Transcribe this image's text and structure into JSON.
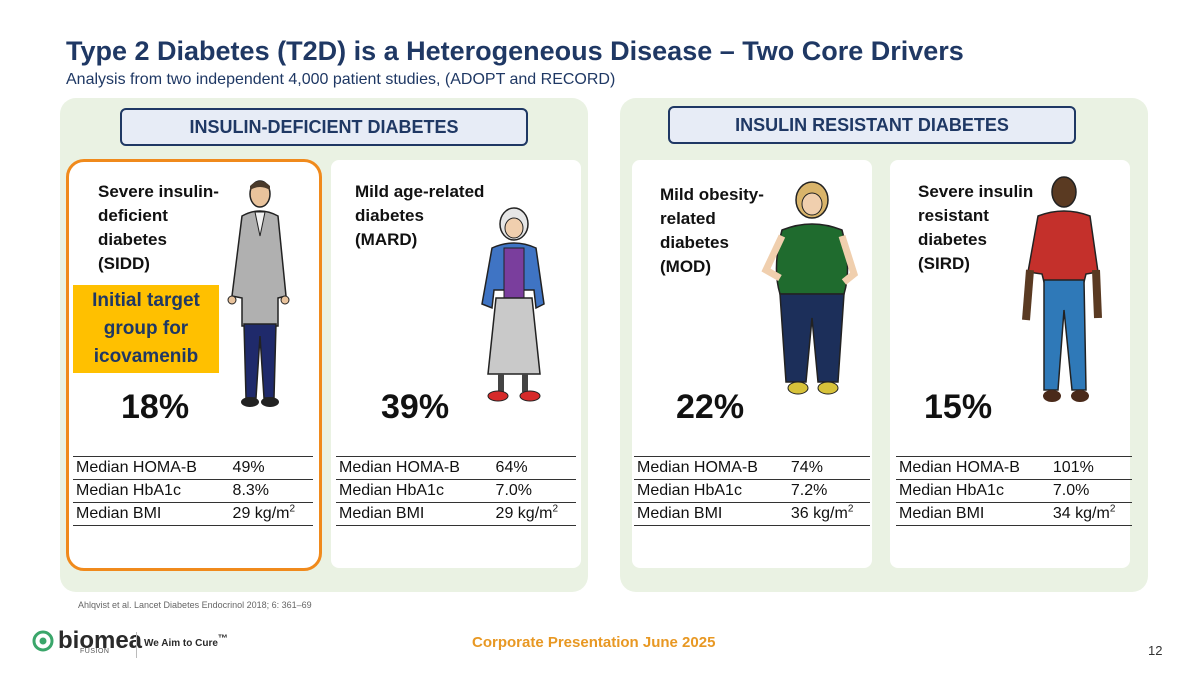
{
  "title": "Type 2 Diabetes (T2D) is a Heterogeneous Disease – Two Core Drivers",
  "subtitle": "Analysis from two independent 4,000 patient studies, (ADOPT and RECORD)",
  "groups": {
    "left_label": "INSULIN-DEFICIENT DIABETES",
    "right_label": "INSULIN RESISTANT DIABETES"
  },
  "target_callout": {
    "line1": "Initial target",
    "line2": "group for",
    "line3": "icovamenib"
  },
  "stat_labels": {
    "homa": "Median HOMA-B",
    "hba1c": "Median HbA1c",
    "bmi": "Median BMI",
    "bmi_unit": "kg/m",
    "bmi_exp": "2"
  },
  "subtypes": [
    {
      "name_lines": [
        "Severe insulin-",
        "deficient",
        "diabetes",
        "(SIDD)"
      ],
      "percent": "18%",
      "homa": "49%",
      "hba1c": "8.3%",
      "bmi": "29"
    },
    {
      "name_lines": [
        "Mild age-related",
        "diabetes",
        "(MARD)"
      ],
      "percent": "39%",
      "homa": "64%",
      "hba1c": "7.0%",
      "bmi": "29"
    },
    {
      "name_lines": [
        "Mild obesity-",
        "related",
        "diabetes",
        "(MOD)"
      ],
      "percent": "22%",
      "homa": "74%",
      "hba1c": "7.2%",
      "bmi": "36"
    },
    {
      "name_lines": [
        "Severe insulin",
        "resistant",
        "diabetes",
        "(SIRD)"
      ],
      "percent": "15%",
      "homa": "101%",
      "hba1c": "7.0%",
      "bmi": "34"
    }
  ],
  "citation": "Ahlqvist et al. Lancet Diabetes Endocrinol 2018; 6: 361–69",
  "footer": {
    "logo_text": "biomea",
    "logo_sub": "FUSION",
    "tagline": "We Aim to Cure",
    "tagline_mark": "™",
    "center": "Corporate Presentation June 2025",
    "page": "12"
  },
  "colors": {
    "navy": "#1f3864",
    "orange": "#f08a1c",
    "gold": "#ffc000",
    "panel": "#eaf2e3",
    "green": "#3aa66a"
  },
  "icons": {
    "logo": "biomea-logo-icon",
    "figures": [
      "man-gray-jacket-figure",
      "elderly-woman-figure",
      "woman-green-shirt-figure",
      "man-red-shirt-figure"
    ]
  }
}
